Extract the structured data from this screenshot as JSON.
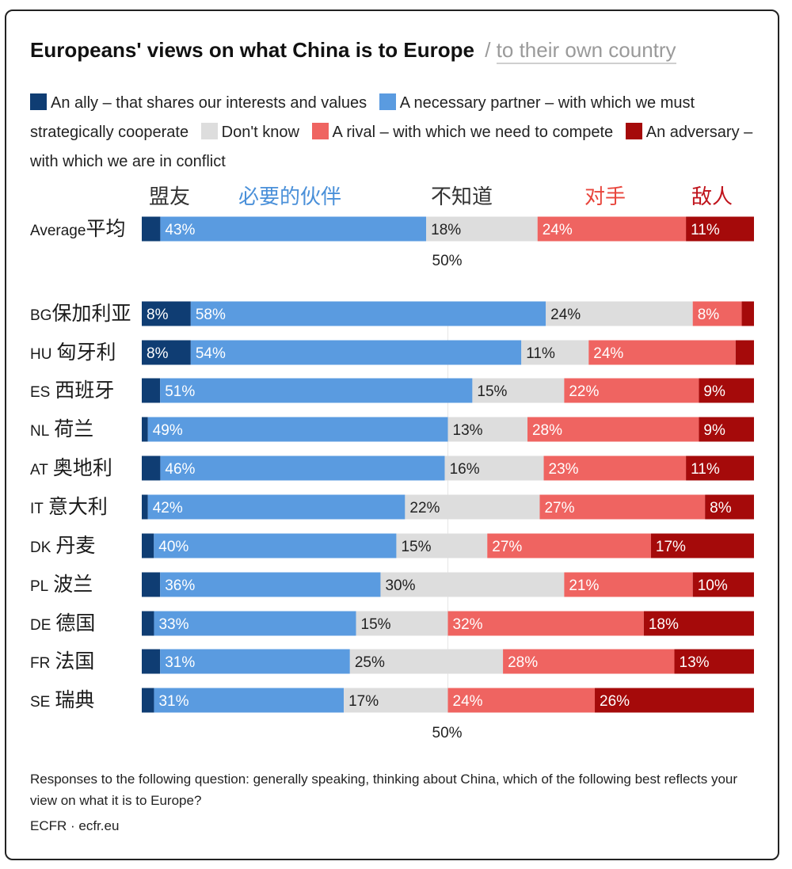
{
  "chart_data": {
    "type": "bar",
    "orientation": "horizontal",
    "stacked": true,
    "title": "Europeans' views on what China is to Europe",
    "title_separator": "/",
    "title_alt": "to their own country",
    "category_headers": [
      {
        "label": "盟友",
        "color": "#333333"
      },
      {
        "label": "必要的伙伴",
        "color": "#4a90d9"
      },
      {
        "label": "不知道",
        "color": "#333333"
      },
      {
        "label": "对手",
        "color": "#e8453c"
      },
      {
        "label": "敌人",
        "color": "#c0141c"
      }
    ],
    "legend": [
      {
        "label": "An ally – that shares our interests and values",
        "color": "#0f3d73"
      },
      {
        "label": "A necessary partner – with which we must strategically cooperate",
        "color": "#5a9be0"
      },
      {
        "label": "Don't know",
        "color": "#dddddd"
      },
      {
        "label": "A rival – with which we need to compete",
        "color": "#ef6461"
      },
      {
        "label": "An adversary – with which we are in conflict",
        "color": "#a50a0a"
      }
    ],
    "series": [
      {
        "name": "An ally – that shares our interests and values",
        "color": "#0f3d73",
        "label_color": "#ffffff"
      },
      {
        "name": "A necessary partner – with which we must strategically cooperate",
        "color": "#5a9be0",
        "label_color": "#ffffff"
      },
      {
        "name": "Don't know",
        "color": "#dddddd",
        "label_color": "#222222"
      },
      {
        "name": "A rival – with which we need to compete",
        "color": "#ef6461",
        "label_color": "#ffffff"
      },
      {
        "name": "An adversary – with which we are in conflict",
        "color": "#a50a0a",
        "label_color": "#ffffff"
      }
    ],
    "rows": [
      {
        "code": "Average",
        "name": "平均",
        "values": [
          3,
          43,
          18,
          24,
          11
        ],
        "labels": [
          "",
          "43%",
          "18%",
          "24%",
          "11%"
        ]
      },
      {
        "code": "BG",
        "name": "保加利亚",
        "values": [
          8,
          58,
          24,
          8,
          2
        ],
        "labels": [
          "8%",
          "58%",
          "24%",
          "8%",
          ""
        ]
      },
      {
        "code": "HU",
        "name": "匈牙利",
        "values": [
          8,
          54,
          11,
          24,
          3
        ],
        "labels": [
          "8%",
          "54%",
          "11%",
          "24%",
          ""
        ]
      },
      {
        "code": "ES",
        "name": "西班牙",
        "values": [
          3,
          51,
          15,
          22,
          9
        ],
        "labels": [
          "",
          "51%",
          "15%",
          "22%",
          "9%"
        ]
      },
      {
        "code": "NL",
        "name": "荷兰",
        "values": [
          1,
          49,
          13,
          28,
          9
        ],
        "labels": [
          "",
          "49%",
          "13%",
          "28%",
          "9%"
        ]
      },
      {
        "code": "AT",
        "name": "奥地利",
        "values": [
          3,
          46,
          16,
          23,
          11
        ],
        "labels": [
          "",
          "46%",
          "16%",
          "23%",
          "11%"
        ]
      },
      {
        "code": "IT",
        "name": "意大利",
        "values": [
          1,
          42,
          22,
          27,
          8
        ],
        "labels": [
          "",
          "42%",
          "22%",
          "27%",
          "8%"
        ]
      },
      {
        "code": "DK",
        "name": "丹麦",
        "values": [
          2,
          40,
          15,
          27,
          17
        ],
        "labels": [
          "",
          "40%",
          "15%",
          "27%",
          "17%"
        ]
      },
      {
        "code": "PL",
        "name": "波兰",
        "values": [
          3,
          36,
          30,
          21,
          10
        ],
        "labels": [
          "",
          "36%",
          "30%",
          "21%",
          "10%"
        ]
      },
      {
        "code": "DE",
        "name": "德国",
        "values": [
          2,
          33,
          15,
          32,
          18
        ],
        "labels": [
          "",
          "33%",
          "15%",
          "32%",
          "18%"
        ]
      },
      {
        "code": "FR",
        "name": "法国",
        "values": [
          3,
          31,
          25,
          28,
          13
        ],
        "labels": [
          "",
          "31%",
          "25%",
          "28%",
          "13%"
        ]
      },
      {
        "code": "SE",
        "name": "瑞典",
        "values": [
          2,
          31,
          17,
          24,
          26
        ],
        "labels": [
          "",
          "31%",
          "17%",
          "24%",
          "26%"
        ]
      }
    ],
    "reference_line": {
      "value": 50,
      "label": "50%"
    },
    "xlim": [
      0,
      100
    ]
  },
  "footnote": "Responses to the following question: generally speaking, thinking about China, which of the following best reflects your view on what it is to Europe?",
  "source": "ECFR · ecfr.eu"
}
